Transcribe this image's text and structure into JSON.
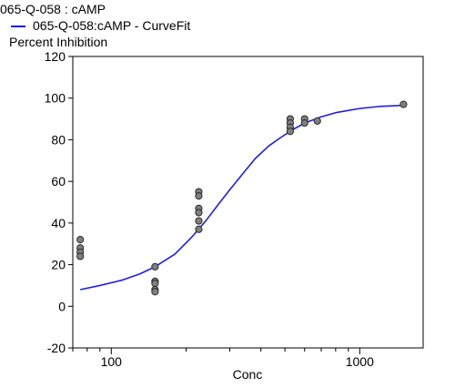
{
  "chart_data": {
    "type": "scatter",
    "title": "065-Q-058  : cAMP",
    "legend": {
      "placement": "top-left",
      "entries": [
        {
          "label": "065-Q-058:cAMP - CurveFit",
          "color": "#1f1fdc"
        }
      ]
    },
    "xlabel": "Conc",
    "ylabel": "Percent Inhibition",
    "x_scale": "log",
    "xlim": [
      70,
      1800
    ],
    "ylim": [
      -20,
      120
    ],
    "x_ticks": [
      100,
      1000
    ],
    "x_tick_labels": [
      "100",
      "1000"
    ],
    "y_ticks": [
      -20,
      0,
      20,
      40,
      60,
      80,
      100,
      120
    ],
    "y_tick_labels": [
      "-20",
      "0",
      "20",
      "40",
      "60",
      "80",
      "100",
      "120"
    ],
    "grid": false,
    "series": [
      {
        "type": "scatter",
        "marker_color": "#808080",
        "points": [
          {
            "x": 75,
            "y": 32
          },
          {
            "x": 75,
            "y": 28
          },
          {
            "x": 75,
            "y": 26
          },
          {
            "x": 75,
            "y": 24
          },
          {
            "x": 150,
            "y": 19
          },
          {
            "x": 150,
            "y": 12
          },
          {
            "x": 150,
            "y": 11
          },
          {
            "x": 150,
            "y": 8
          },
          {
            "x": 150,
            "y": 7
          },
          {
            "x": 225,
            "y": 55
          },
          {
            "x": 225,
            "y": 53
          },
          {
            "x": 225,
            "y": 47
          },
          {
            "x": 225,
            "y": 45
          },
          {
            "x": 225,
            "y": 41
          },
          {
            "x": 225,
            "y": 37
          },
          {
            "x": 525,
            "y": 90
          },
          {
            "x": 525,
            "y": 88
          },
          {
            "x": 525,
            "y": 86
          },
          {
            "x": 525,
            "y": 84
          },
          {
            "x": 600,
            "y": 90
          },
          {
            "x": 600,
            "y": 88
          },
          {
            "x": 675,
            "y": 89
          },
          {
            "x": 1500,
            "y": 97
          }
        ]
      },
      {
        "name": "065-Q-058:cAMP - CurveFit",
        "type": "line",
        "color": "#1f1fdc",
        "x": [
          75,
          90,
          110,
          130,
          150,
          180,
          210,
          240,
          270,
          300,
          340,
          380,
          430,
          480,
          540,
          600,
          700,
          800,
          1000,
          1200,
          1500
        ],
        "y": [
          8,
          10,
          12.5,
          15.5,
          19,
          25,
          33,
          41,
          49,
          56,
          64,
          71,
          77,
          81,
          85,
          88,
          91,
          93,
          95,
          96,
          96.5
        ]
      }
    ]
  }
}
